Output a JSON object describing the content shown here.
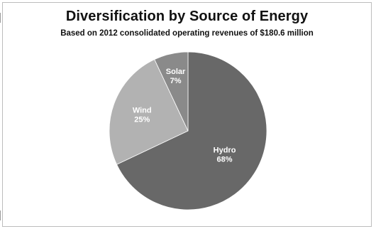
{
  "chart_data": {
    "type": "pie",
    "title": "Diversification by Source of Energy",
    "subtitle": "Based on 2012 consolidated operating revenues of $180.6 million",
    "categories": [
      "Hydro",
      "Wind",
      "Solar"
    ],
    "values": [
      68,
      25,
      7
    ],
    "value_labels": [
      "68%",
      "25%",
      "7%"
    ],
    "colors": [
      "#686868",
      "#b2b2b2",
      "#8a8a8a"
    ],
    "label_color": "#ffffff",
    "legend": "none"
  }
}
